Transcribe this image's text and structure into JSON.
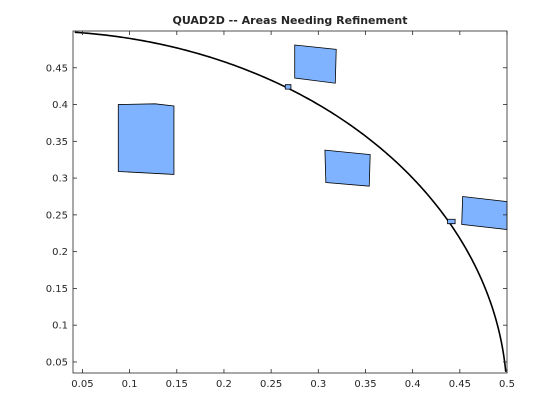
{
  "chart_data": {
    "type": "scatter",
    "title": "QUAD2D -- Areas Needing Refinement",
    "xlabel": "",
    "ylabel": "",
    "xlim": [
      0.04,
      0.5
    ],
    "ylim": [
      0.035,
      0.5
    ],
    "xticks": [
      "0.05",
      "0.1",
      "0.15",
      "0.2",
      "0.25",
      "0.3",
      "0.35",
      "0.4",
      "0.45",
      "0.5"
    ],
    "yticks": [
      "0.05",
      "0.1",
      "0.15",
      "0.2",
      "0.25",
      "0.3",
      "0.35",
      "0.4",
      "0.45"
    ],
    "grid": false,
    "curve": {
      "shape": "quarter-circle",
      "center": [
        0,
        0
      ],
      "radius": 0.5
    },
    "regions": [
      {
        "points": [
          [
            0.088,
            0.4
          ],
          [
            0.127,
            0.401
          ],
          [
            0.147,
            0.398
          ],
          [
            0.147,
            0.305
          ],
          [
            0.088,
            0.309
          ]
        ]
      },
      {
        "points": [
          [
            0.275,
            0.481
          ],
          [
            0.319,
            0.475
          ],
          [
            0.318,
            0.429
          ],
          [
            0.275,
            0.436
          ]
        ]
      },
      {
        "points": [
          [
            0.307,
            0.338
          ],
          [
            0.355,
            0.332
          ],
          [
            0.354,
            0.289
          ],
          [
            0.308,
            0.294
          ]
        ]
      },
      {
        "points": [
          [
            0.453,
            0.275
          ],
          [
            0.5,
            0.268
          ],
          [
            0.5,
            0.23
          ],
          [
            0.452,
            0.237
          ]
        ]
      },
      {
        "points": [
          [
            0.265,
            0.427
          ],
          [
            0.271,
            0.427
          ],
          [
            0.271,
            0.421
          ],
          [
            0.265,
            0.421
          ]
        ]
      },
      {
        "points": [
          [
            0.437,
            0.244
          ],
          [
            0.445,
            0.244
          ],
          [
            0.445,
            0.238
          ],
          [
            0.437,
            0.238
          ]
        ]
      }
    ],
    "colors": {
      "fill": "#80b3ff",
      "edge": "#000000",
      "axis": "#262626",
      "background": "#ffffff"
    }
  }
}
